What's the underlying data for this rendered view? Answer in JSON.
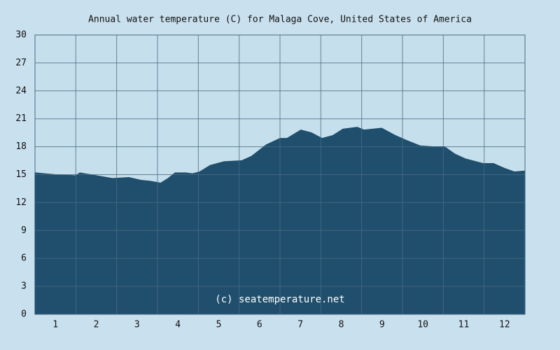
{
  "chart_data": {
    "type": "area",
    "title": "Annual water temperature (C) for Malaga Cove, United States of America",
    "annotation": "(c) seatemperature.net",
    "x": [
      0,
      0.5,
      1.0,
      1.1,
      1.5,
      1.9,
      2.3,
      2.6,
      2.83,
      3.08,
      3.26,
      3.43,
      3.69,
      3.86,
      4.03,
      4.29,
      4.63,
      5.06,
      5.31,
      5.66,
      6.0,
      6.17,
      6.51,
      6.77,
      7.03,
      7.29,
      7.54,
      7.89,
      8.06,
      8.49,
      8.83,
      9.09,
      9.43,
      9.77,
      10.03,
      10.29,
      10.54,
      10.97,
      11.23,
      11.49,
      11.74,
      12.0
    ],
    "values": [
      15.2,
      15.0,
      14.9,
      15.2,
      14.9,
      14.6,
      14.7,
      14.4,
      14.3,
      14.1,
      14.6,
      15.2,
      15.2,
      15.1,
      15.3,
      16.0,
      16.4,
      16.5,
      17.0,
      18.2,
      18.9,
      18.9,
      19.8,
      19.5,
      18.9,
      19.2,
      19.9,
      20.1,
      19.8,
      20.0,
      19.2,
      18.7,
      18.1,
      18.0,
      18.0,
      17.2,
      16.7,
      16.2,
      16.2,
      15.7,
      15.3,
      15.4
    ],
    "color": "#1f4f6c",
    "xlim": [
      0,
      12
    ],
    "xticks": [
      {
        "value": 0.5,
        "label": "1"
      },
      {
        "value": 1.5,
        "label": "2"
      },
      {
        "value": 2.5,
        "label": "3"
      },
      {
        "value": 3.5,
        "label": "4"
      },
      {
        "value": 4.5,
        "label": "5"
      },
      {
        "value": 5.5,
        "label": "6"
      },
      {
        "value": 6.5,
        "label": "7"
      },
      {
        "value": 7.5,
        "label": "8"
      },
      {
        "value": 8.5,
        "label": "9"
      },
      {
        "value": 9.5,
        "label": "10"
      },
      {
        "value": 10.5,
        "label": "11"
      },
      {
        "value": 11.5,
        "label": "12"
      }
    ],
    "ylim": [
      0,
      30
    ],
    "yticks": [
      0,
      3,
      6,
      9,
      12,
      15,
      18,
      21,
      24,
      27,
      30
    ],
    "grid": true
  }
}
